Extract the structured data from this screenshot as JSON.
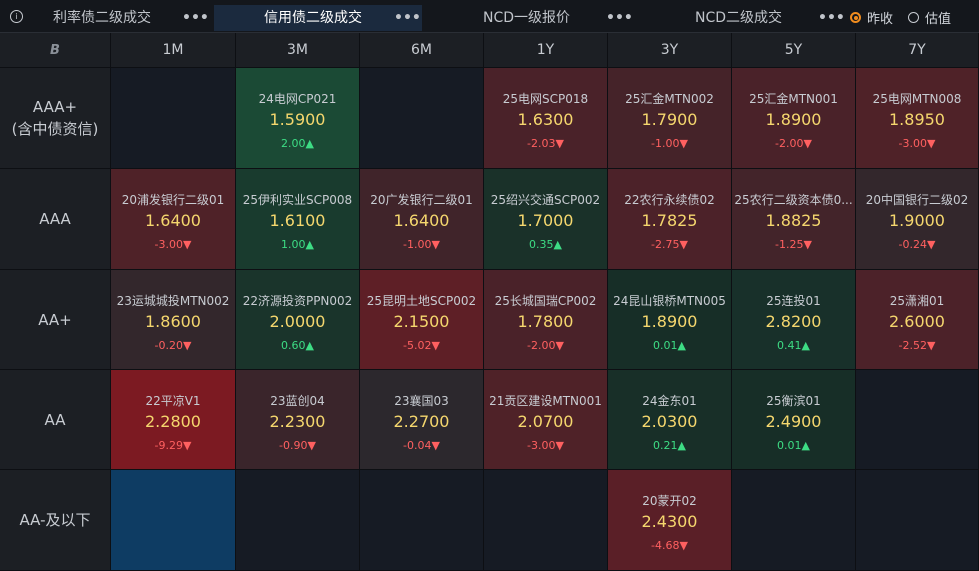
{
  "topbar": {
    "info_icon": "ⓘ",
    "tabs": [
      {
        "label": "利率债二级成交",
        "active": false
      },
      {
        "label": "信用债二级成交",
        "active": true
      },
      {
        "label": "NCD一级报价",
        "active": false
      },
      {
        "label": "NCD二级成交",
        "active": false
      }
    ],
    "more_label": "•••",
    "radio": [
      {
        "label": "昨收",
        "checked": true
      },
      {
        "label": "估值",
        "checked": false
      }
    ]
  },
  "grid": {
    "corner_logo": "B",
    "columns": [
      "1M",
      "3M",
      "6M",
      "1Y",
      "3Y",
      "5Y",
      "7Y"
    ],
    "rows": [
      {
        "label_lines": [
          "AAA+",
          "(含中债资信)"
        ],
        "cells": [
          null,
          {
            "name": "24电网CP021",
            "rate": "1.5900",
            "change": "2.00▲",
            "dir": "up",
            "bg": "#1b4a35"
          },
          null,
          {
            "name": "25电网SCP018",
            "rate": "1.6300",
            "change": "-2.03▼",
            "dir": "down",
            "bg": "#4a2229"
          },
          {
            "name": "25汇金MTN002",
            "rate": "1.7900",
            "change": "-1.00▼",
            "dir": "down",
            "bg": "#452329"
          },
          {
            "name": "25汇金MTN001",
            "rate": "1.8900",
            "change": "-2.00▼",
            "dir": "down",
            "bg": "#4a2229"
          },
          {
            "name": "25电网MTN008",
            "rate": "1.8950",
            "change": "-3.00▼",
            "dir": "down",
            "bg": "#4f2228"
          }
        ]
      },
      {
        "label_lines": [
          "AAA"
        ],
        "cells": [
          {
            "name": "20浦发银行二级01",
            "rate": "1.6400",
            "change": "-3.00▼",
            "dir": "down",
            "bg": "#4f2228"
          },
          {
            "name": "25伊利实业SCP008",
            "rate": "1.6100",
            "change": "1.00▲",
            "dir": "up",
            "bg": "#193b2e"
          },
          {
            "name": "20广发银行二级01",
            "rate": "1.6400",
            "change": "-1.00▼",
            "dir": "down",
            "bg": "#40242a"
          },
          {
            "name": "25绍兴交通SCP002",
            "rate": "1.7000",
            "change": "0.35▲",
            "dir": "up",
            "bg": "#1a3129"
          },
          {
            "name": "22农行永续债02",
            "rate": "1.7825",
            "change": "-2.75▼",
            "dir": "down",
            "bg": "#4c2229"
          },
          {
            "name": "25农行二级资本债0...",
            "rate": "1.8825",
            "change": "-1.25▼",
            "dir": "down",
            "bg": "#43242a"
          },
          {
            "name": "20中国银行二级02",
            "rate": "1.9000",
            "change": "-0.24▼",
            "dir": "down",
            "bg": "#33272c"
          }
        ]
      },
      {
        "label_lines": [
          "AA+"
        ],
        "cells": [
          {
            "name": "23运城城投MTN002",
            "rate": "1.8600",
            "change": "-0.20▼",
            "dir": "down",
            "bg": "#33272c"
          },
          {
            "name": "22济源投资PPN002",
            "rate": "2.0000",
            "change": "0.60▲",
            "dir": "up",
            "bg": "#1a342b"
          },
          {
            "name": "25昆明土地SCP002",
            "rate": "2.1500",
            "change": "-5.02▼",
            "dir": "down",
            "bg": "#5e1f26"
          },
          {
            "name": "25长城国瑞CP002",
            "rate": "1.7800",
            "change": "-2.00▼",
            "dir": "down",
            "bg": "#4a2229"
          },
          {
            "name": "24昆山银桥MTN005",
            "rate": "1.8900",
            "change": "0.01▲",
            "dir": "up",
            "bg": "#172e27"
          },
          {
            "name": "25连投01",
            "rate": "2.8200",
            "change": "0.41▲",
            "dir": "up",
            "bg": "#18302a"
          },
          {
            "name": "25潇湘01",
            "rate": "2.6000",
            "change": "-2.52▼",
            "dir": "down",
            "bg": "#4c2229"
          }
        ]
      },
      {
        "label_lines": [
          "AA"
        ],
        "cells": [
          {
            "name": "22平凉V1",
            "rate": "2.2800",
            "change": "-9.29▼",
            "dir": "down",
            "bg": "#7c1a22"
          },
          {
            "name": "23蓝创04",
            "rate": "2.2300",
            "change": "-0.90▼",
            "dir": "down",
            "bg": "#3a252b"
          },
          {
            "name": "23襄国03",
            "rate": "2.2700",
            "change": "-0.04▼",
            "dir": "down",
            "bg": "#2c282d"
          },
          {
            "name": "21贡区建设MTN001",
            "rate": "2.0700",
            "change": "-3.00▼",
            "dir": "down",
            "bg": "#4f2228"
          },
          {
            "name": "24金东01",
            "rate": "2.0300",
            "change": "0.21▲",
            "dir": "up",
            "bg": "#182f28"
          },
          {
            "name": "25衡滨01",
            "rate": "2.4900",
            "change": "0.01▲",
            "dir": "up",
            "bg": "#172e27"
          },
          null
        ]
      },
      {
        "label_lines": [
          "AA-及以下"
        ],
        "cells": [
          {
            "name": "",
            "rate": "",
            "change": "",
            "dir": "",
            "bg": "#0e3c63"
          },
          null,
          null,
          null,
          {
            "name": "20蒙开02",
            "rate": "2.4300",
            "change": "-4.68▼",
            "dir": "down",
            "bg": "#5a1f27"
          },
          null,
          null
        ]
      }
    ],
    "empty_bg": "#161b24"
  },
  "colors": {
    "up": "#3ddc84",
    "down": "#ff6060",
    "rate": "#f5d76e",
    "accent": "#f08c1e",
    "active_tab_bg": "#1b2a3e"
  }
}
